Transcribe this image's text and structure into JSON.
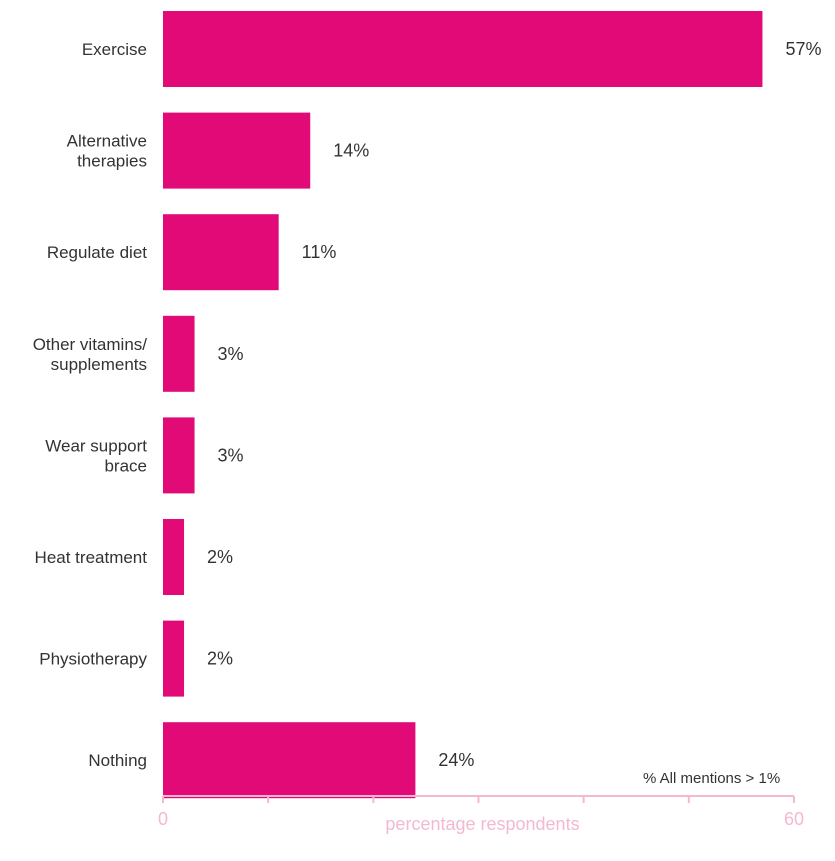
{
  "chart_data": {
    "type": "bar",
    "orientation": "horizontal",
    "categories": [
      [
        "Exercise"
      ],
      [
        "Alternative",
        "therapies"
      ],
      [
        "Regulate diet"
      ],
      [
        "Other vitamins/",
        "supplements"
      ],
      [
        "Wear support",
        "brace"
      ],
      [
        "Heat treatment"
      ],
      [
        "Physiotherapy"
      ],
      [
        "Nothing"
      ]
    ],
    "values": [
      57,
      14,
      11,
      3,
      3,
      2,
      2,
      24
    ],
    "value_labels": [
      "57%",
      "14%",
      "11%",
      "3%",
      "3%",
      "2%",
      "2%",
      "24%"
    ],
    "xlabel": "percentage respondents",
    "xlim": [
      0,
      60
    ],
    "tick_labels": [
      "0",
      "60"
    ],
    "tick_count": 7,
    "note": "% All mentions > 1%",
    "grid": false,
    "colors": {
      "bar": "#e20a77",
      "axis": "#f4b8d2",
      "text": "#333333"
    }
  }
}
